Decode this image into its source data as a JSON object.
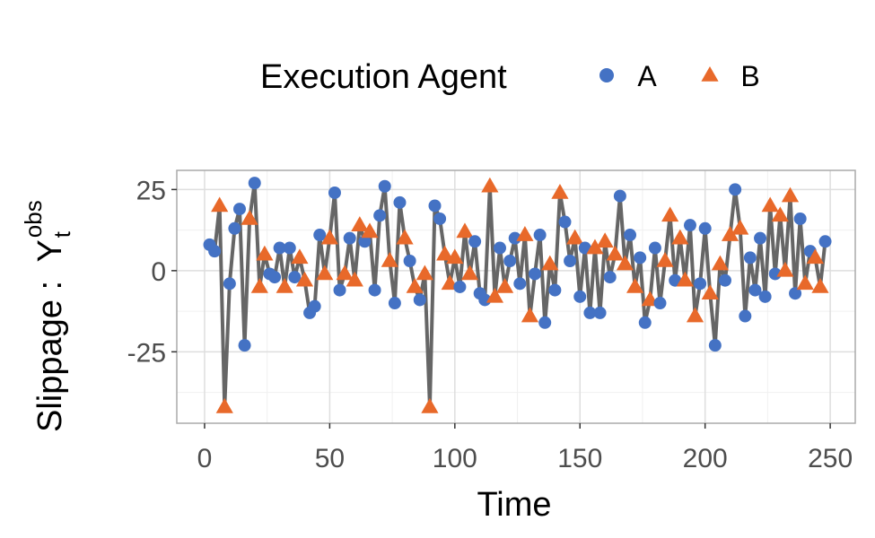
{
  "chart_data": {
    "type": "line",
    "x_label": "Time",
    "y_label": {
      "text": "Slippage :  Y",
      "sub": "t",
      "sup": "obs"
    },
    "legend": {
      "title": "Execution Agent",
      "position": "top",
      "entries": [
        {
          "name": "A",
          "color": "#4472c4",
          "shape": "circle"
        },
        {
          "name": "B",
          "color": "#e8692a",
          "shape": "triangle"
        }
      ]
    },
    "line_color": "#555555",
    "x": [
      2,
      4,
      6,
      8,
      10,
      12,
      14,
      16,
      18,
      20,
      22,
      24,
      26,
      28,
      30,
      32,
      34,
      36,
      38,
      40,
      42,
      44,
      46,
      48,
      50,
      52,
      54,
      56,
      58,
      60,
      62,
      64,
      66,
      68,
      70,
      72,
      74,
      76,
      78,
      80,
      82,
      84,
      86,
      88,
      90,
      92,
      94,
      96,
      98,
      100,
      102,
      104,
      106,
      108,
      110,
      112,
      114,
      116,
      118,
      120,
      122,
      124,
      126,
      128,
      130,
      132,
      134,
      136,
      138,
      140,
      142,
      144,
      146,
      148,
      150,
      152,
      154,
      156,
      158,
      160,
      162,
      164,
      166,
      168,
      170,
      172,
      174,
      176,
      178,
      180,
      182,
      184,
      186,
      188,
      190,
      192,
      194,
      196,
      198,
      200,
      202,
      204,
      206,
      208,
      210,
      212,
      214,
      216,
      218,
      220,
      222,
      224,
      226,
      228,
      230,
      232,
      234,
      236,
      238,
      240,
      242,
      244,
      246,
      248
    ],
    "values": [
      8,
      6,
      20,
      -42,
      -4,
      13,
      19,
      -23,
      16,
      27,
      -5,
      5,
      -1,
      -2,
      7,
      -5,
      7,
      -2,
      4,
      -3,
      -13,
      -11,
      11,
      -1,
      10,
      24,
      -6,
      -1,
      10,
      -3,
      14,
      9,
      12,
      -6,
      17,
      26,
      3,
      -10,
      21,
      10,
      3,
      -5,
      -9,
      -1,
      -42,
      20,
      16,
      5,
      -4,
      4,
      -5,
      12,
      -1,
      9,
      -7,
      -9,
      26,
      -8,
      7,
      -5,
      3,
      10,
      -4,
      11,
      -14,
      -1,
      11,
      -16,
      2,
      -6,
      24,
      15,
      3,
      10,
      -8,
      7,
      -13,
      7,
      -13,
      9,
      -2,
      5,
      23,
      2,
      11,
      -5,
      4,
      -16,
      -9,
      7,
      -10,
      3,
      17,
      -3,
      10,
      -3,
      14,
      -14,
      -4,
      13,
      -7,
      -23,
      2,
      -3,
      11,
      25,
      13,
      -14,
      4,
      -6,
      10,
      -8,
      20,
      -1,
      17,
      0,
      23,
      -7,
      16,
      -4,
      6,
      4,
      -5,
      9
    ],
    "group": [
      "A",
      "A",
      "B",
      "B",
      "A",
      "A",
      "A",
      "A",
      "B",
      "A",
      "B",
      "B",
      "A",
      "A",
      "A",
      "B",
      "A",
      "A",
      "B",
      "B",
      "A",
      "A",
      "A",
      "B",
      "B",
      "A",
      "A",
      "B",
      "A",
      "B",
      "B",
      "A",
      "B",
      "A",
      "A",
      "A",
      "B",
      "A",
      "A",
      "B",
      "A",
      "B",
      "A",
      "B",
      "B",
      "A",
      "A",
      "B",
      "B",
      "B",
      "A",
      "B",
      "B",
      "A",
      "A",
      "A",
      "B",
      "B",
      "A",
      "B",
      "A",
      "A",
      "A",
      "B",
      "B",
      "A",
      "A",
      "A",
      "B",
      "A",
      "B",
      "A",
      "A",
      "B",
      "A",
      "A",
      "A",
      "B",
      "A",
      "B",
      "A",
      "B",
      "A",
      "B",
      "A",
      "B",
      "A",
      "A",
      "B",
      "A",
      "A",
      "B",
      "B",
      "A",
      "B",
      "B",
      "A",
      "B",
      "A",
      "A",
      "B",
      "A",
      "B",
      "A",
      "B",
      "A",
      "B",
      "A",
      "A",
      "A",
      "A",
      "A",
      "B",
      "A",
      "B",
      "B",
      "B",
      "A",
      "A",
      "B",
      "A",
      "B",
      "B",
      "A"
    ],
    "xlim": [
      -11.1,
      260
    ],
    "xticks": [
      0,
      50,
      100,
      150,
      200,
      250
    ],
    "minor_xticks": [
      25,
      75,
      125,
      175,
      225
    ],
    "ylim": [
      -47,
      30.9
    ],
    "yticks": [
      -25,
      0,
      25
    ],
    "minor_yticks": [
      -37.5,
      -12.5,
      12.5
    ],
    "grid": true
  }
}
